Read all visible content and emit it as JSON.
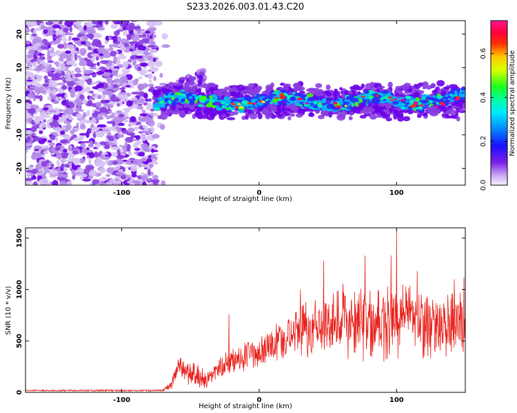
{
  "title": "S233.2026.003.01.43.C20",
  "chart_data": [
    {
      "type": "heatmap",
      "xlabel": "Height of straight line (km)",
      "ylabel": "Frequency (Hz)",
      "xlim": [
        -170,
        150
      ],
      "ylim": [
        -25,
        24
      ],
      "x_ticks": [
        -100,
        0,
        100
      ],
      "x_tick_labels": [
        "-100",
        "0",
        "100"
      ],
      "y_ticks": [
        -20,
        -10,
        0,
        10,
        20
      ],
      "y_tick_labels": [
        "-20",
        "-10",
        "0",
        "10",
        "20"
      ],
      "colorbar": {
        "label": "Normalized spectral amplitude",
        "range": [
          0,
          0.75
        ],
        "ticks": [
          0.0,
          0.2,
          0.4,
          0.6
        ],
        "tick_labels": [
          "0.0",
          "0.2",
          "0.4",
          "0.6"
        ],
        "colormap": "rainbow (white-violet-blue-cyan-green-yellow-red-magenta)"
      },
      "colors": [
        "#f2ecfc",
        "#d6c2f4",
        "#b48be8",
        "#8a3de0",
        "#6a00e8",
        "#2a2cff",
        "#00b8ff",
        "#00ffb0",
        "#40ff00",
        "#ffee00",
        "#ff2a00",
        "#ff0080"
      ],
      "regions": [
        {
          "x_range": [
            -170,
            -75
          ],
          "freq_range": [
            -25,
            24
          ],
          "level": 0.07,
          "description_value": "broadband noise"
        },
        {
          "x_range": [
            -75,
            150
          ],
          "freq_center": 0,
          "freq_halfwidth": 4,
          "level": 0.3
        },
        {
          "x_range": [
            -75,
            -40
          ],
          "freq_center": 7,
          "freq_halfwidth": 3,
          "level": 0.12
        }
      ]
    },
    {
      "type": "line",
      "xlabel": "Height of straight line (km)",
      "ylabel": "SNR (10 * v/v)",
      "xlim": [
        -170,
        150
      ],
      "ylim": [
        0,
        1600
      ],
      "x_ticks": [
        -100,
        0,
        100
      ],
      "x_tick_labels": [
        "-100",
        "0",
        "100"
      ],
      "y_ticks": [
        0,
        500,
        1000,
        1500
      ],
      "y_tick_labels": [
        "0",
        "500",
        "1000",
        "1500"
      ],
      "color": "#e8201a",
      "envelope": [
        {
          "x": -170,
          "mean": 18,
          "spread": 6
        },
        {
          "x": -70,
          "mean": 18,
          "spread": 8
        },
        {
          "x": -66,
          "mean": 60,
          "spread": 30
        },
        {
          "x": -58,
          "mean": 230,
          "spread": 120
        },
        {
          "x": -50,
          "mean": 200,
          "spread": 110
        },
        {
          "x": -40,
          "mean": 120,
          "spread": 80
        },
        {
          "x": -32,
          "mean": 190,
          "spread": 90
        },
        {
          "x": -20,
          "mean": 300,
          "spread": 130
        },
        {
          "x": -10,
          "mean": 360,
          "spread": 120
        },
        {
          "x": 0,
          "mean": 400,
          "spread": 130
        },
        {
          "x": 10,
          "mean": 470,
          "spread": 150
        },
        {
          "x": 25,
          "mean": 560,
          "spread": 180
        },
        {
          "x": 40,
          "mean": 640,
          "spread": 240
        },
        {
          "x": 60,
          "mean": 690,
          "spread": 280
        },
        {
          "x": 80,
          "mean": 660,
          "spread": 280
        },
        {
          "x": 100,
          "mean": 700,
          "spread": 300
        },
        {
          "x": 120,
          "mean": 640,
          "spread": 260
        },
        {
          "x": 150,
          "mean": 660,
          "spread": 260
        }
      ],
      "spikes": [
        {
          "x": 100,
          "y": 1600
        },
        {
          "x": 96,
          "y": 1330
        },
        {
          "x": 77,
          "y": 1330
        },
        {
          "x": 47,
          "y": 1280
        },
        {
          "x": 149,
          "y": 1120
        },
        {
          "x": 142,
          "y": 1100
        },
        {
          "x": 30,
          "y": 1000
        },
        {
          "x": -22,
          "y": 760
        },
        {
          "x": 115,
          "y": 1180
        }
      ]
    }
  ]
}
